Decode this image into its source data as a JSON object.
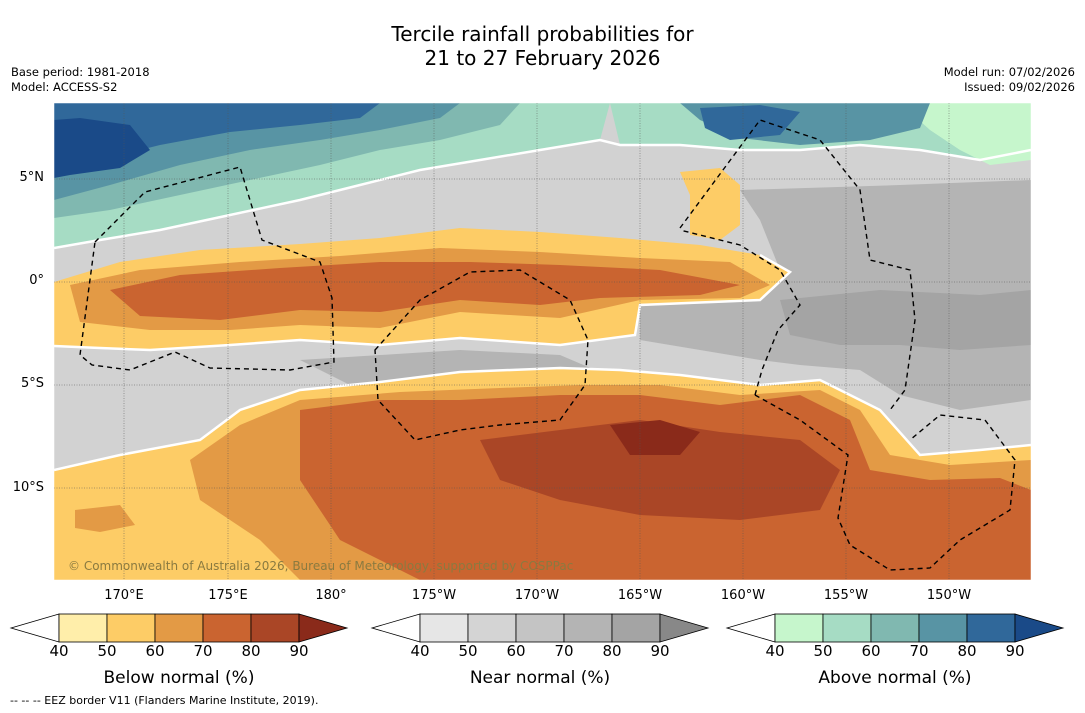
{
  "header": {
    "title_line1": "Tercile rainfall probabilities for",
    "title_line2": "21 to 27 February 2026",
    "base_period": "Base period: 1981-2018",
    "model": "Model: ACCESS-S2",
    "model_run": "Model run: 07/02/2026",
    "issued": "Issued: 09/02/2026"
  },
  "map": {
    "lat_labels": [
      "5°N",
      "0°",
      "5°S",
      "10°S"
    ],
    "lon_labels": [
      "170°E",
      "175°E",
      "180°",
      "175°W",
      "170°W",
      "165°W",
      "160°W",
      "155°W",
      "150°W"
    ],
    "copyright": "© Commonwealth of Australia 2026, Bureau of Meteorology, supported by COSPPac"
  },
  "legends": [
    {
      "label": "Below normal (%)",
      "ticks": [
        "40",
        "50",
        "60",
        "70",
        "80",
        "90"
      ],
      "colors": [
        "#ffeeaa",
        "#fdcc66",
        "#e39a45",
        "#ca6430",
        "#aa4626",
        "#8a2a1a"
      ]
    },
    {
      "label": "Near normal (%)",
      "ticks": [
        "40",
        "50",
        "60",
        "70",
        "80",
        "90"
      ],
      "colors": [
        "#e6e6e6",
        "#d4d4d4",
        "#c4c4c4",
        "#b4b4b4",
        "#a4a4a4",
        "#888888"
      ]
    },
    {
      "label": "Above normal (%)",
      "ticks": [
        "40",
        "50",
        "60",
        "70",
        "80",
        "90"
      ],
      "colors": [
        "#c6f6cc",
        "#a6dcc4",
        "#80b8b0",
        "#5894a4",
        "#30689a",
        "#1a4a88"
      ]
    }
  ],
  "footnote": "--  --  -- EEZ border V11 (Flanders Marine Institute, 2019).",
  "colors": {
    "near_base": "#d2d2d2",
    "below_base": "#fdcc66",
    "above_base": "#a6dcc4"
  }
}
